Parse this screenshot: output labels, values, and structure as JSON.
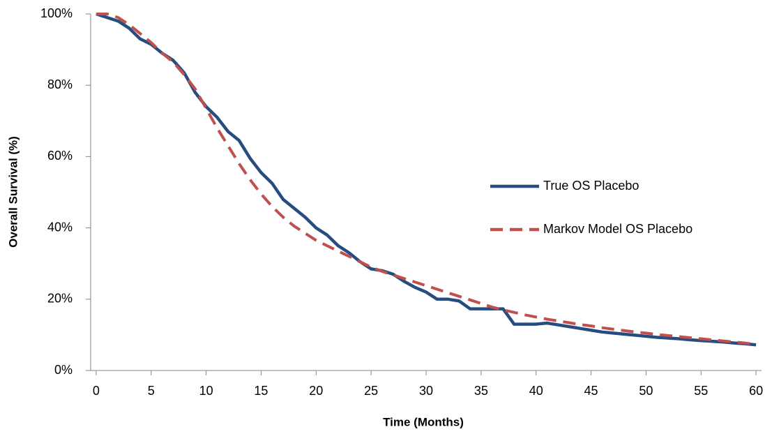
{
  "chart_data": {
    "type": "line",
    "x_label": "Time (Months)",
    "y_label": "Overall Survival (%)",
    "x": [
      0,
      1,
      2,
      3,
      4,
      5,
      6,
      7,
      8,
      9,
      10,
      11,
      12,
      13,
      14,
      15,
      16,
      17,
      18,
      19,
      20,
      21,
      22,
      23,
      24,
      25,
      26,
      27,
      28,
      29,
      30,
      31,
      32,
      33,
      34,
      35,
      36,
      37,
      38,
      39,
      40,
      41,
      42,
      43,
      44,
      45,
      46,
      47,
      48,
      49,
      50,
      51,
      52,
      53,
      54,
      55,
      56,
      57,
      58,
      59,
      60
    ],
    "series": [
      {
        "name": "True OS Placebo",
        "color": "#264c80",
        "line_style": "solid",
        "values": [
          100,
          99,
          98,
          96,
          93,
          91.5,
          89,
          87,
          83.5,
          78,
          74,
          71,
          67,
          64.5,
          59.5,
          55.5,
          52.5,
          48,
          45.5,
          43,
          40,
          38,
          35,
          33,
          30.5,
          28.5,
          28,
          27,
          25,
          23.3,
          22,
          20,
          20,
          19.5,
          17.3,
          17.3,
          17.3,
          17.3,
          13,
          13,
          13,
          13.3,
          12.8,
          12.3,
          11.8,
          11.3,
          10.8,
          10.5,
          10.2,
          9.9,
          9.6,
          9.3,
          9.1,
          8.9,
          8.6,
          8.4,
          8.2,
          8,
          7.7,
          7.5,
          7.2
        ]
      },
      {
        "name": "Markov Model OS Placebo",
        "color": "#c0504d",
        "line_style": "dashed",
        "values": [
          100,
          100,
          99,
          97,
          94.5,
          92,
          89,
          86.5,
          83,
          79,
          73.5,
          68,
          63,
          58,
          53.5,
          49.5,
          46,
          43,
          40.5,
          38.5,
          36.5,
          35,
          33.5,
          32,
          30.5,
          29,
          27.8,
          26.8,
          25.8,
          24.8,
          23.8,
          22.8,
          21.8,
          20.8,
          19.8,
          18.8,
          17.8,
          17,
          16.3,
          15.6,
          15,
          14.4,
          13.9,
          13.4,
          12.9,
          12.5,
          12,
          11.6,
          11.2,
          10.8,
          10.5,
          10.1,
          9.8,
          9.5,
          9.2,
          8.9,
          8.6,
          8.3,
          8,
          7.7,
          7.3
        ]
      }
    ],
    "xlim": [
      -0.5,
      60.5
    ],
    "xticks": [
      0,
      5,
      10,
      15,
      20,
      25,
      30,
      35,
      40,
      45,
      50,
      55,
      60
    ],
    "ylim": [
      0,
      100
    ],
    "yticks": [
      {
        "value": 0,
        "label": "0%"
      },
      {
        "value": 20,
        "label": "20%"
      },
      {
        "value": 40,
        "label": "40%"
      },
      {
        "value": 60,
        "label": "60%"
      },
      {
        "value": 80,
        "label": "80%"
      },
      {
        "value": 100,
        "label": "100%"
      }
    ],
    "grid": false,
    "legend": "right"
  }
}
